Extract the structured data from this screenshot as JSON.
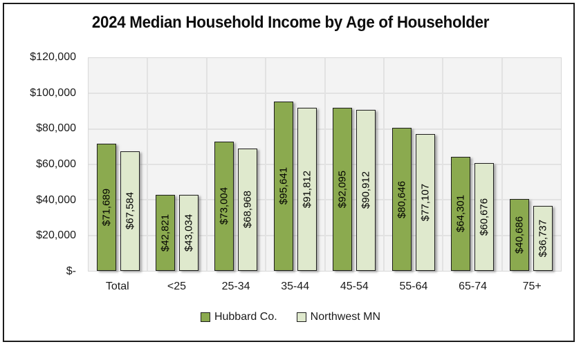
{
  "title": "2024 Median Household Income by Age of Householder",
  "colors": {
    "hubbard": "#8BAA4F",
    "northwest": "#DFE9CD",
    "bar_border": "#1c1c1c",
    "plot_bg": "#f3f3f3",
    "gridline": "#e2e2e2",
    "figure_border": "#1b1b1b",
    "text": "#1a1a1a"
  },
  "chart_data": {
    "type": "bar",
    "title": "2024 Median Household Income by Age of Householder",
    "categories": [
      "Total",
      "<25",
      "25-34",
      "35-44",
      "45-54",
      "55-64",
      "65-74",
      "75+"
    ],
    "series": [
      {
        "name": "Hubbard Co.",
        "color_key": "hubbard",
        "values": [
          71689,
          42821,
          73004,
          95641,
          92095,
          80646,
          64301,
          40686
        ],
        "labels": [
          "$71,689",
          "$42,821",
          "$73,004",
          "$95,641",
          "$92,095",
          "$80,646",
          "$64,301",
          "$40,686"
        ]
      },
      {
        "name": "Northwest MN",
        "color_key": "northwest",
        "values": [
          67584,
          43034,
          68968,
          91812,
          90912,
          77107,
          60676,
          36737
        ],
        "labels": [
          "$67,584",
          "$43,034",
          "$68,968",
          "$91,812",
          "$90,912",
          "$77,107",
          "$60,676",
          "$36,737"
        ]
      }
    ],
    "y_axis": {
      "min": 0,
      "max": 120000,
      "tick_interval": 20000,
      "tick_labels": [
        "$120,000",
        "$100,000",
        "$80,000",
        "$60,000",
        "$40,000",
        "$20,000",
        "$-"
      ]
    },
    "xlabel": "",
    "ylabel": "",
    "grid": true,
    "legend": {
      "position": "bottom",
      "entries": [
        "Hubbard Co.",
        "Northwest MN"
      ]
    }
  }
}
